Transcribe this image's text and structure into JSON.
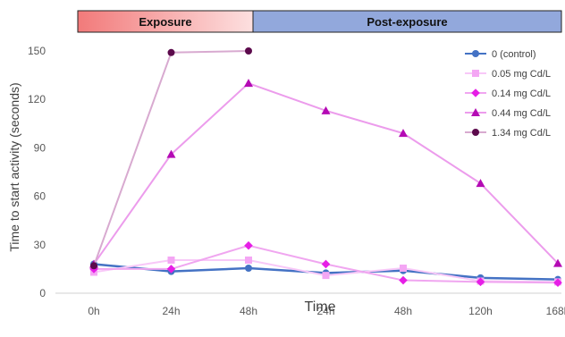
{
  "chart_data": {
    "type": "line",
    "title": "",
    "xlabel": "Time",
    "ylabel": "Time to start activity (seconds)",
    "categories": [
      "0h",
      "24h",
      "48h",
      "24h",
      "48h",
      "120h",
      "168h"
    ],
    "ylim": [
      0,
      150
    ],
    "yticks": [
      0,
      30,
      60,
      90,
      120,
      150
    ],
    "grid": false,
    "legend_position": "right",
    "phases": [
      {
        "label": "Exposure",
        "from_category": 0,
        "to_category": 2,
        "color": "#f08080"
      },
      {
        "label": "Post-exposure",
        "from_category": 2,
        "to_category": 6,
        "color": "#92a8dc"
      }
    ],
    "series": [
      {
        "name": "0 (control)",
        "color": "#4472c4",
        "line_color": "#4472c4",
        "marker": "circle",
        "values": [
          18,
          13.5,
          15.5,
          12.5,
          14,
          9.5,
          8.5
        ]
      },
      {
        "name": "0.05 mg Cd/L",
        "color": "#f4a6f4",
        "line_color": "#f8c8f8",
        "marker": "square",
        "values": [
          13,
          20.5,
          20.5,
          11,
          15.5,
          7.5,
          7
        ]
      },
      {
        "name": "0.14 mg Cd/L",
        "color": "#e61ee6",
        "line_color": "#f0a6f0",
        "marker": "diamond",
        "values": [
          15,
          15,
          29.5,
          18,
          8,
          7,
          6.5
        ]
      },
      {
        "name": "0.44 mg Cd/L",
        "color": "#b40ab4",
        "line_color": "#ec9cec",
        "marker": "triangle",
        "values": [
          18,
          86,
          130,
          113,
          99,
          68,
          18.5
        ]
      },
      {
        "name": "1.34 mg Cd/L",
        "color": "#5c0a4c",
        "line_color": "#d8aad0",
        "marker": "circle",
        "values": [
          17,
          149,
          150,
          null,
          null,
          null,
          null
        ]
      }
    ]
  }
}
